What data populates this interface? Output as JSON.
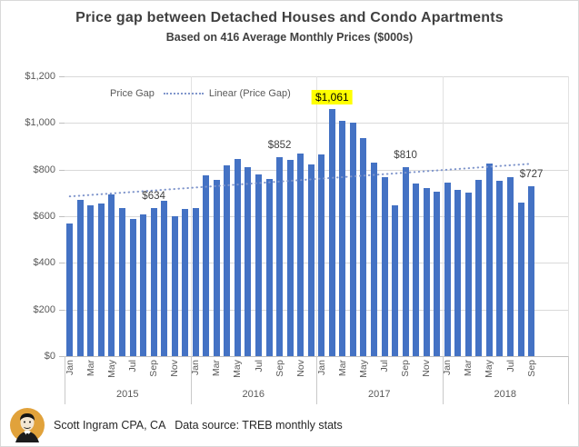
{
  "title": "Price gap between Detached Houses and Condo Apartments",
  "subtitle": "Based on 416 Average Monthly Prices ($000s)",
  "legend": {
    "bar_label": "Price Gap",
    "trend_label": "Linear (Price Gap)"
  },
  "footer": {
    "credit": "Scott Ingram CPA, CA",
    "source": "Data source: TREB monthly stats"
  },
  "colors": {
    "bar": "#4472C4",
    "trend": "#8096CC",
    "highlight": "#FFFF00",
    "grid": "#D9D9D9",
    "axis_line": "#BFBFBF",
    "axis_text": "#595959",
    "title_text": "#404040",
    "logo_gold": "#E1A23B"
  },
  "chart_data": {
    "type": "bar",
    "title": "Price gap between Detached Houses and Condo Apartments",
    "subtitle": "Based on 416 Average Monthly Prices ($000s)",
    "unit": "$000s",
    "grid": true,
    "legend_position": "top",
    "y_axis": {
      "min": 0,
      "max": 1200,
      "step": 200,
      "tick_labels": [
        "$0",
        "$200",
        "$400",
        "$600",
        "$800",
        "$1,000",
        "$1,200"
      ]
    },
    "x_axis": {
      "month_tick_labels": [
        "Jan",
        "Mar",
        "May",
        "Jul",
        "Sep",
        "Nov"
      ],
      "years": [
        "2015",
        "2016",
        "2017",
        "2018"
      ],
      "months_per_year": 12,
      "total_slots": 48,
      "data_slots": 45
    },
    "series": [
      {
        "name": "Price Gap",
        "by_year": [
          {
            "year": "2015",
            "values": [
              570,
              670,
              645,
              653,
              694,
              635,
              590,
              609,
              634,
              665,
              600,
              633
            ]
          },
          {
            "year": "2016",
            "values": [
              637,
              775,
              755,
              820,
              846,
              812,
              778,
              760,
              852,
              843,
              868,
              823
            ]
          },
          {
            "year": "2017",
            "values": [
              865,
              1061,
              1009,
              1003,
              935,
              831,
              766,
              645,
              810,
              740,
              720,
              707
            ]
          },
          {
            "year": "2018",
            "values": [
              744,
              714,
              700,
              755,
              827,
              751,
              768,
              658,
              727
            ]
          }
        ]
      }
    ],
    "data_labels": [
      {
        "index": 8,
        "month": "Sep",
        "year": "2015",
        "text": "$634",
        "highlight": false
      },
      {
        "index": 20,
        "month": "Sep",
        "year": "2016",
        "text": "$852",
        "highlight": false
      },
      {
        "index": 25,
        "month": "Feb",
        "year": "2017",
        "text": "$1,061",
        "highlight": true
      },
      {
        "index": 32,
        "month": "Sep",
        "year": "2017",
        "text": "$810",
        "highlight": false
      },
      {
        "index": 44,
        "month": "Sep",
        "year": "2018",
        "text": "$727",
        "highlight": false
      }
    ],
    "trendline": {
      "name": "Linear (Price Gap)",
      "style": "dotted",
      "start_index": 0,
      "end_index": 44,
      "start_value": 685,
      "end_value": 825
    }
  }
}
